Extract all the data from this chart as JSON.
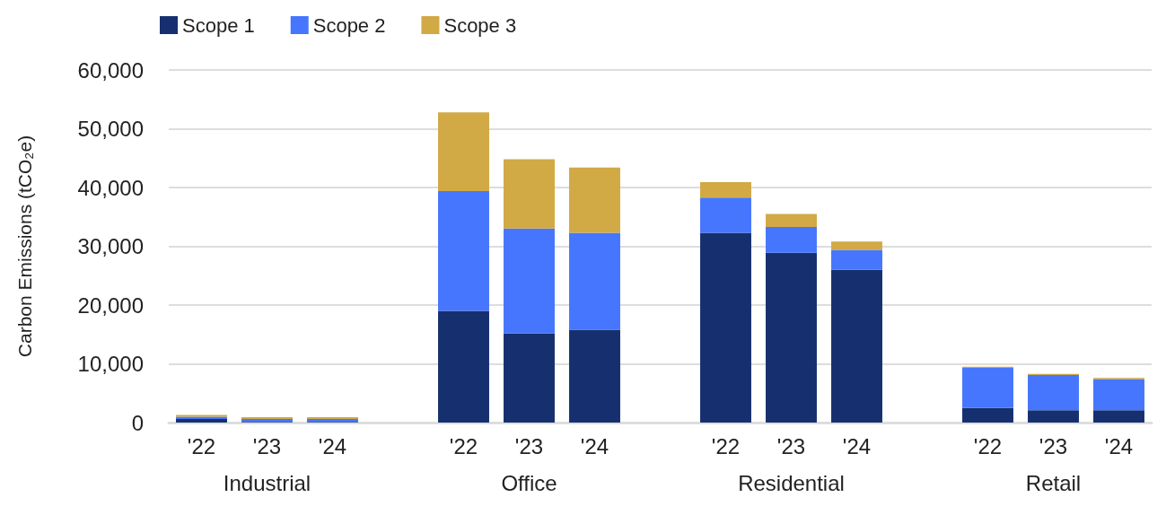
{
  "chart_data": {
    "type": "bar",
    "stacked": true,
    "categories": [
      "'22",
      "'23",
      "'24",
      null,
      "'22",
      "'23",
      "'24",
      null,
      "'22",
      "'23",
      "'24",
      null,
      "'22",
      "'23",
      "'24"
    ],
    "series": [
      {
        "name": "Scope 1",
        "color": "#16306f",
        "values": [
          600,
          100,
          100,
          null,
          19000,
          15200,
          15800,
          null,
          32300,
          28900,
          26000,
          null,
          2500,
          2100,
          2100
        ]
      },
      {
        "name": "Scope 2",
        "color": "#4676fd",
        "values": [
          400,
          500,
          500,
          null,
          20400,
          17800,
          16500,
          null,
          6000,
          4400,
          3400,
          null,
          6800,
          6000,
          5300
        ]
      },
      {
        "name": "Scope 3",
        "color": "#d1a945",
        "values": [
          300,
          300,
          300,
          null,
          13400,
          11800,
          11100,
          null,
          2600,
          2200,
          1400,
          null,
          200,
          200,
          200
        ]
      }
    ],
    "annotations": [
      "Industrial",
      "Office",
      "Residential",
      "Retail"
    ],
    "ylabel": "Carbon Emissions (tCO₂e)",
    "ylim": [
      0,
      60000
    ],
    "yticks": [
      0,
      {
        "value": 10000,
        "label": "10,000"
      },
      {
        "value": 20000,
        "label": "20,000"
      },
      {
        "value": 30000,
        "label": "30,000"
      },
      {
        "value": 40000,
        "label": "40,000"
      },
      {
        "value": 50000,
        "label": "50,000"
      },
      {
        "value": 60000,
        "label": "60,000"
      }
    ],
    "grid": "y",
    "legend": "top left"
  }
}
